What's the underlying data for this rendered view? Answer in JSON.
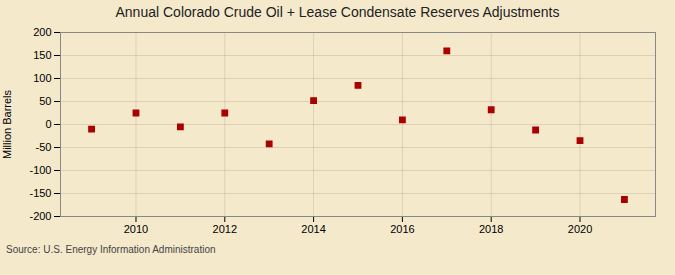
{
  "chart_data": {
    "type": "scatter",
    "title": "Annual Colorado Crude Oil + Lease Condensate Reserves Adjustments",
    "ylabel": "Million Barrels",
    "annotations": [
      "Source: U.S. Energy Information Administration"
    ],
    "x": [
      2009,
      2010,
      2011,
      2012,
      2013,
      2014,
      2015,
      2016,
      2017,
      2018,
      2019,
      2020,
      2021
    ],
    "values": [
      -10,
      25,
      -5,
      25,
      -42,
      52,
      85,
      10,
      160,
      32,
      -12,
      -35,
      -163
    ],
    "color": "#aa0000",
    "marker": "square",
    "xlim": [
      2008.3,
      2021.7
    ],
    "xticks": [
      2010,
      2012,
      2014,
      2016,
      2018,
      2020
    ],
    "ylim": [
      -200,
      200
    ],
    "yticks": [
      -200,
      -150,
      -100,
      -50,
      0,
      50,
      100,
      150,
      200
    ],
    "grid": true
  }
}
